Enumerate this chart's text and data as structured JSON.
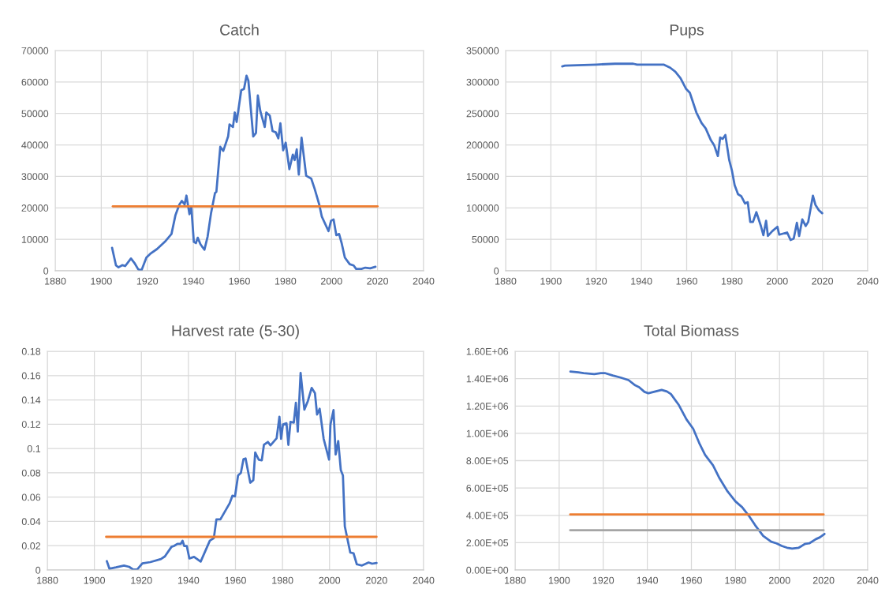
{
  "chart_data": [
    {
      "type": "line",
      "title": "Catch",
      "xlim": [
        1880,
        2040
      ],
      "xticks": [
        1880,
        1900,
        1920,
        1940,
        1960,
        1980,
        2000,
        2020,
        2040
      ],
      "ylim": [
        0,
        70000
      ],
      "yticks": [
        0,
        10000,
        20000,
        30000,
        40000,
        50000,
        60000,
        70000
      ],
      "grid": true,
      "legend": false,
      "series": [
        {
          "color": "#4472c4",
          "x": [
            1904.7,
            1906.4,
            1907.5,
            1909.2,
            1910.4,
            1912.9,
            1914.4,
            1916.1,
            1917.5,
            1919.6,
            1921.3,
            1924.2,
            1927.6,
            1930.5,
            1932.2,
            1933.9,
            1935,
            1936.2,
            1937,
            1938.3,
            1939.1,
            1940.2,
            1941.1,
            1941.9,
            1943.1,
            1944.8,
            1946.2,
            1947.7,
            1949.4,
            1950,
            1951.7,
            1953,
            1955.1,
            1955.7,
            1957.2,
            1958,
            1958.8,
            1960.8,
            1962,
            1963.1,
            1963.9,
            1966,
            1967.2,
            1968,
            1969.1,
            1971,
            1971.7,
            1973.2,
            1974.4,
            1975.8,
            1976.9,
            1977.8,
            1979,
            1980.1,
            1981.7,
            1983.2,
            1984,
            1984.9,
            1985.8,
            1987,
            1989,
            1991.2,
            1992.7,
            1994.7,
            1995.8,
            1998.7,
            1999.8,
            2000.9,
            2002.1,
            2003.3,
            2004.4,
            2005.8,
            2007.9,
            2009.6,
            2010.7,
            2013,
            2014.7,
            2016.8,
            2019.1
          ],
          "values": [
            7300,
            1700,
            1100,
            1800,
            1500,
            3900,
            2500,
            400,
            200,
            4200,
            5400,
            6900,
            9200,
            11700,
            17600,
            21000,
            22200,
            21100,
            23900,
            18000,
            20500,
            9200,
            8800,
            10500,
            8400,
            6700,
            10900,
            18400,
            24700,
            25100,
            39400,
            38100,
            42700,
            46500,
            45700,
            50300,
            47300,
            57400,
            57800,
            62000,
            60400,
            42700,
            43800,
            55700,
            50700,
            45700,
            50300,
            49300,
            44400,
            44000,
            42100,
            46900,
            38300,
            40700,
            32300,
            36900,
            35200,
            38600,
            30600,
            42300,
            30200,
            29300,
            26000,
            21000,
            17200,
            12600,
            15900,
            16300,
            11300,
            11700,
            8800,
            4200,
            2100,
            1700,
            600,
            600,
            1000,
            800,
            1300
          ]
        },
        {
          "color": "#ed7d31",
          "x": [
            1905,
            2020
          ],
          "values": [
            20500,
            20500
          ]
        }
      ]
    },
    {
      "type": "line",
      "title": "Pups",
      "xlim": [
        1880,
        2040
      ],
      "xticks": [
        1880,
        1900,
        1920,
        1940,
        1960,
        1980,
        2000,
        2020,
        2040
      ],
      "ylim": [
        0,
        350000
      ],
      "yticks": [
        0,
        50000,
        100000,
        150000,
        200000,
        250000,
        300000,
        350000
      ],
      "grid": true,
      "legend": false,
      "series": [
        {
          "color": "#4472c4",
          "x": [
            1905,
            1906.2,
            1920.1,
            1928.3,
            1936.4,
            1938.1,
            1949.8,
            1952.7,
            1955,
            1957.3,
            1959.7,
            1961.4,
            1964.3,
            1966.6,
            1968.4,
            1970.7,
            1972.2,
            1973.8,
            1974.8,
            1975.9,
            1977.1,
            1978.8,
            1980,
            1981.2,
            1982.7,
            1984.1,
            1985.8,
            1987,
            1988.1,
            1989.3,
            1990.8,
            1992.8,
            1993.9,
            1995.1,
            1995.9,
            1997.8,
            2000.1,
            2000.9,
            2004.4,
            2005.9,
            2007.3,
            2008.7,
            2009.7,
            2011.1,
            2012.6,
            2013.7,
            2015.8,
            2016.9,
            2018.4,
            2019.9
          ],
          "values": [
            324800,
            326000,
            327700,
            329000,
            329000,
            327700,
            327700,
            322700,
            316400,
            306000,
            289200,
            282900,
            251500,
            234700,
            226300,
            207500,
            199000,
            182300,
            211700,
            209600,
            215800,
            176000,
            159300,
            136200,
            121600,
            118600,
            106900,
            109000,
            77600,
            77600,
            93100,
            71200,
            56600,
            79600,
            55300,
            62900,
            70000,
            57400,
            60800,
            49000,
            51100,
            76300,
            55300,
            81700,
            71200,
            77600,
            119400,
            104800,
            96400,
            91400
          ]
        }
      ]
    },
    {
      "type": "line",
      "title": "Harvest rate (5-30)",
      "xlim": [
        1880,
        2040
      ],
      "xticks": [
        1880,
        1900,
        1920,
        1940,
        1960,
        1980,
        2000,
        2020,
        2040
      ],
      "ylim": [
        0,
        0.18
      ],
      "yticks": [
        0,
        0.02,
        0.04,
        0.06,
        0.08,
        0.1,
        0.12,
        0.14,
        0.16,
        0.18
      ],
      "grid": true,
      "legend": false,
      "series": [
        {
          "color": "#4472c4",
          "x": [
            1905.3,
            1906.4,
            1909.2,
            1912.6,
            1914.8,
            1916.5,
            1918.2,
            1920.4,
            1923.8,
            1928.3,
            1930,
            1932.8,
            1933.9,
            1935.3,
            1936.7,
            1937.5,
            1938.2,
            1939.3,
            1940.4,
            1942.4,
            1945.2,
            1949.1,
            1950.8,
            1951.9,
            1953.6,
            1957.5,
            1958.7,
            1959.8,
            1961.1,
            1962.3,
            1963.4,
            1964.3,
            1966.3,
            1967.6,
            1968.4,
            1969.9,
            1971.2,
            1972.1,
            1973.8,
            1974.9,
            1977.5,
            1978.7,
            1979.4,
            1980.2,
            1981.7,
            1982.5,
            1983.4,
            1984.8,
            1985.7,
            1986.5,
            1987.7,
            1989.3,
            1990.8,
            1992.4,
            1993.8,
            1994.7,
            1995.8,
            1997.5,
            1999.8,
            2000.4,
            2001.7,
            2002.6,
            2003.7,
            2004.8,
            2005.7,
            2006.5,
            2008.8,
            2010.2,
            2011.6,
            2013.8,
            2016.6,
            2018.1,
            2020
          ],
          "values": [
            0.0073,
            0.0011,
            0.0022,
            0.0037,
            0.0026,
            0.0004,
            0.0004,
            0.0054,
            0.0065,
            0.009,
            0.0112,
            0.0191,
            0.0198,
            0.0215,
            0.0215,
            0.0241,
            0.0198,
            0.0198,
            0.0095,
            0.0108,
            0.0069,
            0.0241,
            0.0262,
            0.0417,
            0.0417,
            0.0548,
            0.0611,
            0.0606,
            0.0778,
            0.08,
            0.0912,
            0.0918,
            0.0718,
            0.074,
            0.0968,
            0.0908,
            0.0903,
            0.103,
            0.1054,
            0.1026,
            0.1084,
            0.1262,
            0.108,
            0.1198,
            0.1208,
            0.103,
            0.1219,
            0.1213,
            0.1376,
            0.114,
            0.1622,
            0.132,
            0.1391,
            0.1499,
            0.1456,
            0.128,
            0.1327,
            0.108,
            0.0908,
            0.1198,
            0.1316,
            0.0951,
            0.1062,
            0.0822,
            0.0778,
            0.0359,
            0.0144,
            0.0138,
            0.0047,
            0.0037,
            0.0062,
            0.0052,
            0.0058
          ]
        },
        {
          "color": "#ed7d31",
          "x": [
            1905,
            2020
          ],
          "values": [
            0.0273,
            0.0273
          ]
        }
      ]
    },
    {
      "type": "line",
      "title": "Total Biomass",
      "xlim": [
        1880,
        2040
      ],
      "xticks": [
        1880,
        1900,
        1920,
        1940,
        1960,
        1980,
        2000,
        2020,
        2040
      ],
      "ylim": [
        0,
        1600000
      ],
      "yticks": [
        {
          "value": 0,
          "label": "0.00E+00"
        },
        {
          "value": 200000,
          "label": "2.00E+05"
        },
        {
          "value": 400000,
          "label": "4.00E+05"
        },
        {
          "value": 600000,
          "label": "6.00E+05"
        },
        {
          "value": 800000,
          "label": "8.00E+05"
        },
        {
          "value": 1000000,
          "label": "1.00E+06"
        },
        {
          "value": 1200000,
          "label": "1.20E+06"
        },
        {
          "value": 1400000,
          "label": "1.40E+06"
        },
        {
          "value": 1600000,
          "label": "1.60E+06"
        }
      ],
      "grid": true,
      "legend": false,
      "series": [
        {
          "color": "#4472c4",
          "x": [
            1905.1,
            1908.7,
            1911.1,
            1915.9,
            1918.9,
            1920.7,
            1924.3,
            1927.9,
            1931.5,
            1934.5,
            1936.3,
            1938.7,
            1940.5,
            1942.9,
            1946.5,
            1948.9,
            1950.7,
            1954.3,
            1957.8,
            1960.8,
            1963.8,
            1966.2,
            1969.8,
            1972.8,
            1976.4,
            1980,
            1983,
            1986,
            1989,
            1992.6,
            1996.2,
            1998.6,
            2001,
            2003.4,
            2005.7,
            2008.7,
            2011.7,
            2013.5,
            2016.5,
            2018.3,
            2020.4
          ],
          "values": [
            1452000,
            1446000,
            1441000,
            1433000,
            1441000,
            1441000,
            1423000,
            1408000,
            1389000,
            1351000,
            1337000,
            1303000,
            1293000,
            1303000,
            1318000,
            1306000,
            1287000,
            1207000,
            1101000,
            1034000,
            920000,
            843000,
            766000,
            670000,
            575000,
            502000,
            460000,
            398000,
            326000,
            249000,
            207000,
            195000,
            176000,
            163000,
            157000,
            163000,
            192000,
            195000,
            226000,
            239000,
            264000
          ]
        },
        {
          "color": "#ed7d31",
          "x": [
            1905,
            2020
          ],
          "values": [
            406000,
            406000
          ]
        },
        {
          "color": "#a5a5a5",
          "x": [
            1905,
            2020
          ],
          "values": [
            291000,
            291000
          ]
        }
      ]
    }
  ]
}
